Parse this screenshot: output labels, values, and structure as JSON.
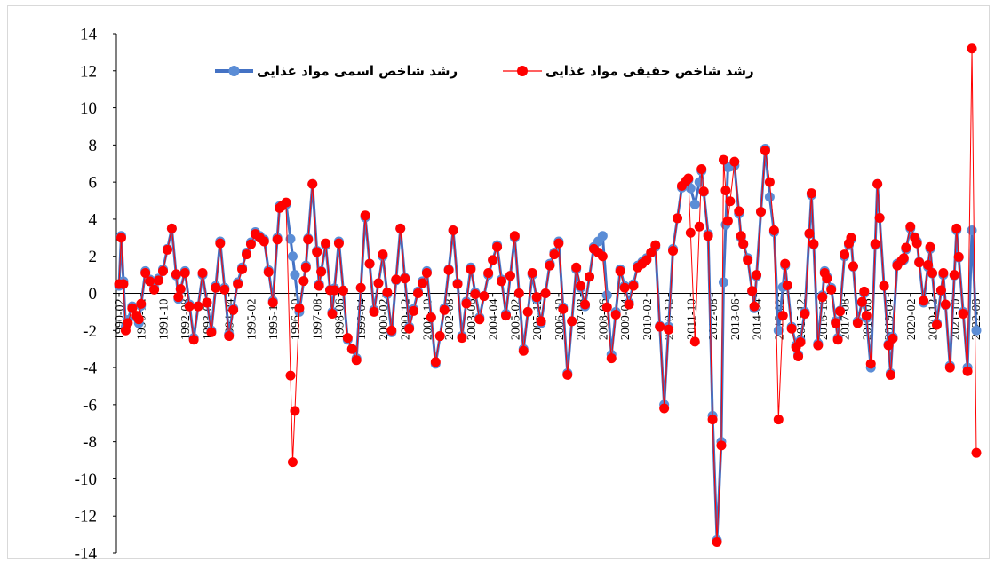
{
  "chart_data": {
    "type": "line",
    "title": "",
    "xlabel": "",
    "ylabel": "",
    "ylim": [
      -14,
      14
    ],
    "yticks": [
      14,
      12,
      10,
      8,
      6,
      4,
      2,
      0,
      -2,
      -4,
      -6,
      -8,
      -10,
      -12,
      -14
    ],
    "grid": false,
    "legend_position": "top",
    "x_tick_labels": [
      "1990-02",
      "1990-12",
      "1991-10",
      "1992-08",
      "1993-06",
      "1994-04",
      "1995-02",
      "1995-12",
      "1996-10",
      "1997-08",
      "1998-06",
      "1999-04",
      "2000-02",
      "2000-12",
      "2001-10",
      "2002-08",
      "2003-06",
      "2004-04",
      "2005-02",
      "2005-12",
      "2006-10",
      "2007-08",
      "2008-06",
      "2009-04",
      "2010-02",
      "2010-12",
      "2011-10",
      "2012-08",
      "2013-06",
      "2014-04",
      "2015-02",
      "2015-12",
      "2016-10",
      "2017-08",
      "2018-06",
      "2019-04",
      "2020-02",
      "2020-12",
      "2021-10",
      "2022-08"
    ],
    "months_per_tick": 10,
    "n_points": 391,
    "series": [
      {
        "name": "رشد شاخص اسمی مواد غذایی",
        "color": "#4472C4",
        "marker_color": "#5B8DD6",
        "keypoints": [
          [
            0,
            0.4
          ],
          [
            1,
            3.1
          ],
          [
            3,
            -1.8
          ],
          [
            6,
            -0.7
          ],
          [
            9,
            -1.6
          ],
          [
            12,
            1.2
          ],
          [
            16,
            0.3
          ],
          [
            20,
            1.3
          ],
          [
            24,
            3.5
          ],
          [
            27,
            -0.3
          ],
          [
            30,
            1.2
          ],
          [
            34,
            -2.4
          ],
          [
            38,
            1.0
          ],
          [
            42,
            -2.0
          ],
          [
            46,
            2.8
          ],
          [
            50,
            -2.2
          ],
          [
            54,
            0.6
          ],
          [
            58,
            2.2
          ],
          [
            62,
            3.3
          ],
          [
            66,
            2.9
          ],
          [
            70,
            -0.4
          ],
          [
            73,
            4.7
          ],
          [
            76,
            4.8
          ],
          [
            79,
            2.0
          ],
          [
            82,
            -1.0
          ],
          [
            85,
            1.5
          ],
          [
            88,
            5.9
          ],
          [
            91,
            0.5
          ],
          [
            94,
            2.6
          ],
          [
            97,
            -1.0
          ],
          [
            100,
            2.8
          ],
          [
            104,
            -2.5
          ],
          [
            108,
            -3.5
          ],
          [
            112,
            4.1
          ],
          [
            116,
            -0.9
          ],
          [
            120,
            2.0
          ],
          [
            124,
            -2.1
          ],
          [
            128,
            3.5
          ],
          [
            132,
            -1.8
          ],
          [
            136,
            0.1
          ],
          [
            140,
            1.2
          ],
          [
            144,
            -3.8
          ],
          [
            148,
            -0.8
          ],
          [
            152,
            3.4
          ],
          [
            156,
            -2.3
          ],
          [
            160,
            1.4
          ],
          [
            164,
            -1.3
          ],
          [
            168,
            1.0
          ],
          [
            172,
            2.6
          ],
          [
            176,
            -1.1
          ],
          [
            180,
            3.0
          ],
          [
            184,
            -3.0
          ],
          [
            188,
            1.0
          ],
          [
            192,
            -1.6
          ],
          [
            196,
            1.6
          ],
          [
            200,
            2.8
          ],
          [
            204,
            -4.3
          ],
          [
            208,
            1.3
          ],
          [
            212,
            -0.7
          ],
          [
            216,
            2.5
          ],
          [
            220,
            3.1
          ],
          [
            224,
            -3.3
          ],
          [
            228,
            1.3
          ],
          [
            232,
            -0.5
          ],
          [
            236,
            1.5
          ],
          [
            240,
            1.9
          ],
          [
            244,
            2.5
          ],
          [
            248,
            -6.0
          ],
          [
            252,
            2.4
          ],
          [
            256,
            5.7
          ],
          [
            259,
            6.1
          ],
          [
            262,
            4.8
          ],
          [
            265,
            6.6
          ],
          [
            268,
            3.2
          ],
          [
            270,
            -6.6
          ],
          [
            272,
            -13.3
          ],
          [
            274,
            -8.0
          ],
          [
            275,
            0.6
          ],
          [
            277,
            6.8
          ],
          [
            280,
            6.9
          ],
          [
            283,
            3.0
          ],
          [
            286,
            1.9
          ],
          [
            289,
            -0.8
          ],
          [
            292,
            4.4
          ],
          [
            294,
            7.8
          ],
          [
            296,
            5.2
          ],
          [
            298,
            3.3
          ],
          [
            300,
            -2.0
          ],
          [
            303,
            1.5
          ],
          [
            306,
            -1.8
          ],
          [
            309,
            -3.3
          ],
          [
            312,
            -1.0
          ],
          [
            315,
            5.3
          ],
          [
            318,
            -2.7
          ],
          [
            321,
            1.2
          ],
          [
            324,
            0.3
          ],
          [
            327,
            -2.4
          ],
          [
            330,
            2.0
          ],
          [
            333,
            2.9
          ],
          [
            336,
            -1.5
          ],
          [
            339,
            0.0
          ],
          [
            342,
            -4.0
          ],
          [
            345,
            5.9
          ],
          [
            348,
            0.4
          ],
          [
            351,
            -4.3
          ],
          [
            354,
            1.6
          ],
          [
            357,
            1.8
          ],
          [
            360,
            3.5
          ],
          [
            363,
            2.8
          ],
          [
            366,
            -0.5
          ],
          [
            369,
            2.4
          ],
          [
            372,
            -1.6
          ],
          [
            375,
            1.0
          ],
          [
            378,
            -3.9
          ],
          [
            381,
            3.4
          ],
          [
            384,
            -1.0
          ],
          [
            386,
            -4.0
          ],
          [
            388,
            3.4
          ],
          [
            390,
            -2.0
          ]
        ]
      },
      {
        "name": "رشد شاخص حقیقی مواد غذایی",
        "color": "#FF0000",
        "marker_color": "#FF0000",
        "keypoints": [
          [
            0,
            0.5
          ],
          [
            1,
            3.0
          ],
          [
            3,
            -2.0
          ],
          [
            6,
            -0.8
          ],
          [
            9,
            -1.4
          ],
          [
            12,
            1.1
          ],
          [
            16,
            0.2
          ],
          [
            20,
            1.2
          ],
          [
            24,
            3.5
          ],
          [
            27,
            -0.2
          ],
          [
            30,
            1.1
          ],
          [
            34,
            -2.5
          ],
          [
            38,
            1.1
          ],
          [
            42,
            -2.1
          ],
          [
            46,
            2.7
          ],
          [
            50,
            -2.3
          ],
          [
            54,
            0.5
          ],
          [
            58,
            2.1
          ],
          [
            62,
            3.2
          ],
          [
            66,
            2.8
          ],
          [
            70,
            -0.5
          ],
          [
            73,
            4.6
          ],
          [
            76,
            4.9
          ],
          [
            79,
            -9.1
          ],
          [
            82,
            -0.8
          ],
          [
            85,
            1.4
          ],
          [
            88,
            5.9
          ],
          [
            91,
            0.4
          ],
          [
            94,
            2.7
          ],
          [
            97,
            -1.1
          ],
          [
            100,
            2.7
          ],
          [
            104,
            -2.4
          ],
          [
            108,
            -3.6
          ],
          [
            112,
            4.2
          ],
          [
            116,
            -1.0
          ],
          [
            120,
            2.1
          ],
          [
            124,
            -2.0
          ],
          [
            128,
            3.5
          ],
          [
            132,
            -1.9
          ],
          [
            136,
            0.0
          ],
          [
            140,
            1.1
          ],
          [
            144,
            -3.7
          ],
          [
            148,
            -0.9
          ],
          [
            152,
            3.4
          ],
          [
            156,
            -2.4
          ],
          [
            160,
            1.3
          ],
          [
            164,
            -1.4
          ],
          [
            168,
            1.1
          ],
          [
            172,
            2.5
          ],
          [
            176,
            -1.2
          ],
          [
            180,
            3.1
          ],
          [
            184,
            -3.1
          ],
          [
            188,
            1.1
          ],
          [
            192,
            -1.5
          ],
          [
            196,
            1.5
          ],
          [
            200,
            2.7
          ],
          [
            204,
            -4.4
          ],
          [
            208,
            1.4
          ],
          [
            212,
            -0.6
          ],
          [
            216,
            2.4
          ],
          [
            220,
            2.0
          ],
          [
            224,
            -3.5
          ],
          [
            228,
            1.2
          ],
          [
            232,
            -0.6
          ],
          [
            236,
            1.4
          ],
          [
            240,
            1.8
          ],
          [
            244,
            2.6
          ],
          [
            248,
            -6.2
          ],
          [
            252,
            2.3
          ],
          [
            256,
            5.8
          ],
          [
            259,
            6.2
          ],
          [
            262,
            -2.6
          ],
          [
            265,
            6.7
          ],
          [
            268,
            3.1
          ],
          [
            270,
            -6.8
          ],
          [
            272,
            -13.4
          ],
          [
            274,
            -8.2
          ],
          [
            275,
            7.2
          ],
          [
            277,
            3.9
          ],
          [
            280,
            7.1
          ],
          [
            283,
            3.1
          ],
          [
            286,
            1.8
          ],
          [
            289,
            -0.7
          ],
          [
            292,
            4.4
          ],
          [
            294,
            7.7
          ],
          [
            296,
            6.0
          ],
          [
            298,
            3.4
          ],
          [
            300,
            -6.8
          ],
          [
            303,
            1.6
          ],
          [
            306,
            -1.9
          ],
          [
            309,
            -3.4
          ],
          [
            312,
            -1.1
          ],
          [
            315,
            5.4
          ],
          [
            318,
            -2.8
          ],
          [
            321,
            1.1
          ],
          [
            324,
            0.2
          ],
          [
            327,
            -2.5
          ],
          [
            330,
            2.1
          ],
          [
            333,
            3.0
          ],
          [
            336,
            -1.6
          ],
          [
            339,
            0.1
          ],
          [
            342,
            -3.8
          ],
          [
            345,
            5.9
          ],
          [
            348,
            0.4
          ],
          [
            351,
            -4.4
          ],
          [
            354,
            1.5
          ],
          [
            357,
            1.9
          ],
          [
            360,
            3.6
          ],
          [
            363,
            2.7
          ],
          [
            366,
            -0.4
          ],
          [
            369,
            2.5
          ],
          [
            372,
            -1.7
          ],
          [
            375,
            1.1
          ],
          [
            378,
            -4.0
          ],
          [
            381,
            3.5
          ],
          [
            384,
            -1.1
          ],
          [
            386,
            -4.2
          ],
          [
            388,
            13.2
          ],
          [
            390,
            -8.6
          ]
        ]
      }
    ]
  }
}
